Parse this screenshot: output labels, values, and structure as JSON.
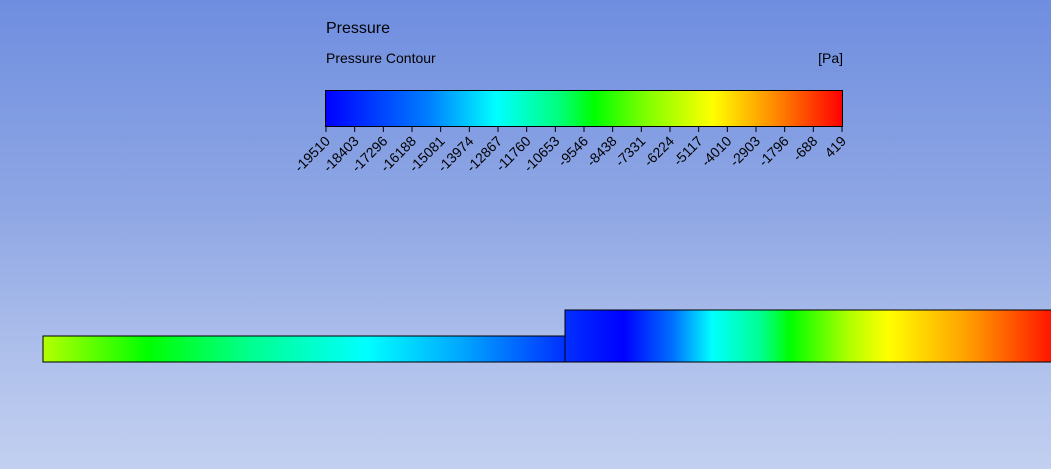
{
  "legend": {
    "title": "Pressure",
    "subtitle": "Pressure Contour",
    "unit": "[Pa]",
    "ticks": [
      "-19510",
      "-18403",
      "-17296",
      "-16188",
      "-15081",
      "-13974",
      "-12867",
      "-11760",
      "-10653",
      "-9546",
      "-8438",
      "-7331",
      "-6224",
      "-5117",
      "-4010",
      "-2903",
      "-1796",
      "-688",
      "419"
    ],
    "colormap": [
      "#0000ff",
      "#007fff",
      "#00ffff",
      "#00ff7f",
      "#00ff00",
      "#7fff00",
      "#ffff00",
      "#ff7f00",
      "#ff0000"
    ]
  },
  "background": {
    "top": "#6f8ee0",
    "bottom": "#c2cff0"
  }
}
